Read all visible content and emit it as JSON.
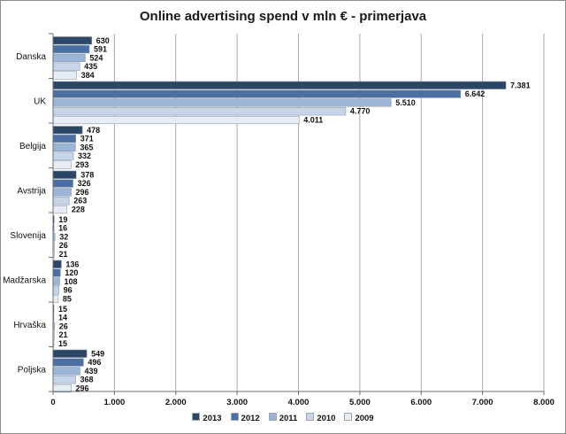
{
  "chart_data": {
    "type": "bar",
    "orientation": "horizontal",
    "title": "Online advertising spend v mln € - primerjava",
    "categories": [
      "Danska",
      "UK",
      "Belgija",
      "Avstrija",
      "Slovenija",
      "Madžarska",
      "Hrvaška",
      "Poljska"
    ],
    "series": [
      {
        "name": "2013",
        "color": "#2c4766",
        "values": [
          630,
          7381,
          478,
          378,
          19,
          136,
          15,
          549
        ],
        "labels": [
          "630",
          "7.381",
          "478",
          "378",
          "19",
          "136",
          "15",
          "549"
        ]
      },
      {
        "name": "2012",
        "color": "#4a6fa0",
        "values": [
          591,
          6642,
          371,
          326,
          16,
          120,
          14,
          496
        ],
        "labels": [
          "591",
          "6.642",
          "371",
          "326",
          "16",
          "120",
          "14",
          "496"
        ]
      },
      {
        "name": "2011",
        "color": "#9bb5d6",
        "values": [
          524,
          5510,
          365,
          296,
          32,
          108,
          26,
          439
        ],
        "labels": [
          "524",
          "5.510",
          "365",
          "296",
          "32",
          "108",
          "26",
          "439"
        ]
      },
      {
        "name": "2010",
        "color": "#c6d5e8",
        "values": [
          435,
          4770,
          332,
          263,
          26,
          96,
          21,
          368
        ],
        "labels": [
          "435",
          "4.770",
          "332",
          "263",
          "26",
          "96",
          "21",
          "368"
        ]
      },
      {
        "name": "2009",
        "color": "#e6edf5",
        "values": [
          384,
          4011,
          293,
          228,
          21,
          85,
          15,
          296
        ],
        "labels": [
          "384",
          "4.011",
          "293",
          "228",
          "21",
          "85",
          "15",
          "296"
        ]
      }
    ],
    "xlim": [
      0,
      8000
    ],
    "xticks": [
      0,
      1000,
      2000,
      3000,
      4000,
      5000,
      6000,
      7000,
      8000
    ],
    "xtick_labels": [
      "0",
      "1.000",
      "2.000",
      "3.000",
      "4.000",
      "5.000",
      "6.000",
      "7.000",
      "8.000"
    ],
    "grid": "vertical",
    "legend_position": "bottom"
  }
}
